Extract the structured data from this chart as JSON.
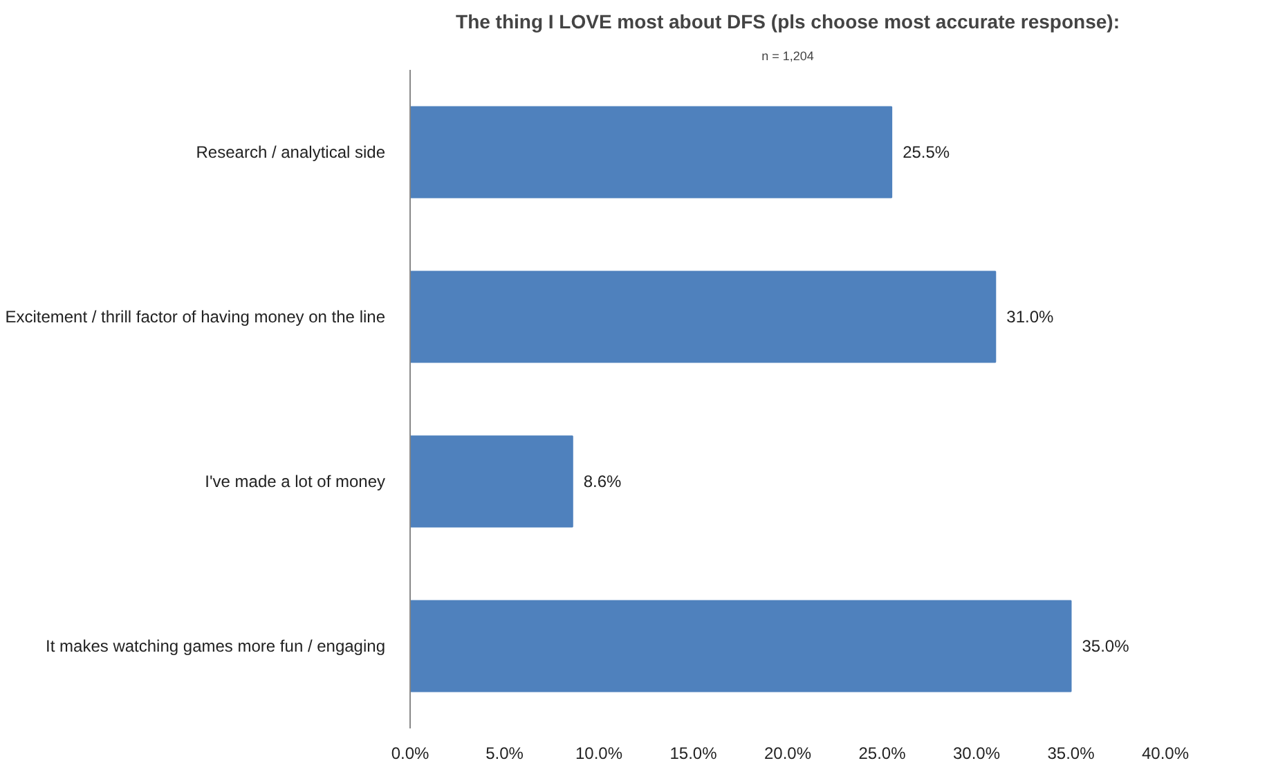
{
  "chart_data": {
    "type": "bar",
    "orientation": "horizontal",
    "title": "The thing I LOVE most about DFS (pls choose most accurate response):",
    "subtitle": "n = 1,204",
    "categories": [
      "Research / analytical side",
      "Excitement / thrill factor of having money on the line",
      "I've made a lot of money",
      "It makes watching games more fun / engaging"
    ],
    "values": [
      25.5,
      31.0,
      8.6,
      35.0
    ],
    "value_labels": [
      "25.5%",
      "31.0%",
      "8.6%",
      "35.0%"
    ],
    "color": "#4f81bd",
    "xlim": [
      0,
      40
    ],
    "xticks": [
      {
        "value": 0,
        "label": "0.0%"
      },
      {
        "value": 5,
        "label": "5.0%"
      },
      {
        "value": 10,
        "label": "10.0%"
      },
      {
        "value": 15,
        "label": "15.0%"
      },
      {
        "value": 20,
        "label": "20.0%"
      },
      {
        "value": 25,
        "label": "25.0%"
      },
      {
        "value": 30,
        "label": "30.0%"
      },
      {
        "value": 35,
        "label": "35.0%"
      },
      {
        "value": 40,
        "label": "40.0%"
      }
    ],
    "grid": false
  }
}
